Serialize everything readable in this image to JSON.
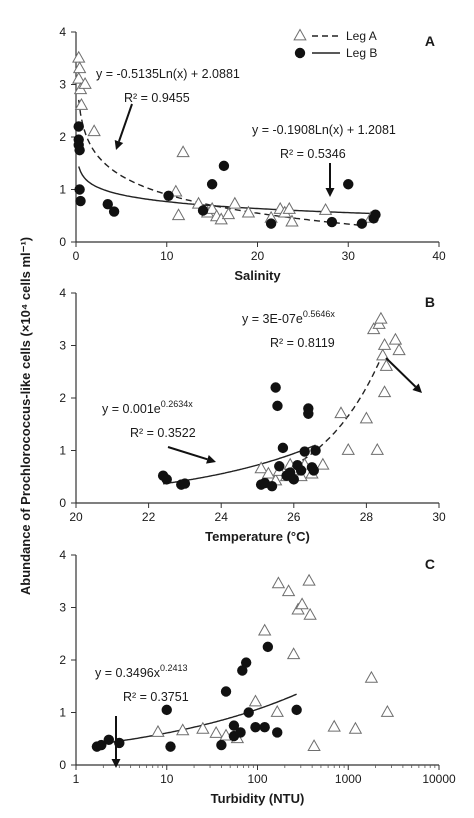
{
  "figure": {
    "ylabel": "Abundance of Prochlorococcus-like cells (×10⁴ cells ml⁻¹)"
  },
  "chart_data": [
    {
      "type": "scatter",
      "panel_label": "A",
      "xlabel": "Salinity",
      "xlim": [
        0,
        40
      ],
      "ylim": [
        0,
        4
      ],
      "xticks": [
        "0",
        "10",
        "20",
        "30",
        "40"
      ],
      "yticks": [
        "0",
        "1",
        "2",
        "3",
        "4"
      ],
      "legend": {
        "placement": "top-right",
        "entries": [
          "Leg A",
          "Leg B"
        ]
      },
      "series": [
        {
          "name": "Leg A",
          "marker": "open-triangle",
          "points": [
            [
              0.3,
              3.5
            ],
            [
              0.4,
              3.3
            ],
            [
              0.3,
              3.1
            ],
            [
              0.5,
              2.9
            ],
            [
              0.6,
              2.6
            ],
            [
              1.0,
              3.0
            ],
            [
              2.0,
              2.1
            ],
            [
              11.0,
              0.95
            ],
            [
              11.3,
              0.5
            ],
            [
              11.8,
              1.7
            ],
            [
              13.5,
              0.72
            ],
            [
              14.5,
              0.55
            ],
            [
              15.0,
              0.62
            ],
            [
              15.5,
              0.48
            ],
            [
              16.0,
              0.42
            ],
            [
              16.8,
              0.52
            ],
            [
              17.5,
              0.72
            ],
            [
              19.0,
              0.55
            ],
            [
              21.5,
              0.45
            ],
            [
              22.5,
              0.62
            ],
            [
              23.0,
              0.55
            ],
            [
              23.5,
              0.62
            ],
            [
              23.8,
              0.38
            ],
            [
              27.5,
              0.6
            ],
            [
              32.5,
              0.45
            ]
          ]
        },
        {
          "name": "Leg B",
          "marker": "filled-circle",
          "points": [
            [
              0.3,
              2.2
            ],
            [
              0.3,
              1.95
            ],
            [
              0.3,
              1.85
            ],
            [
              0.4,
              1.75
            ],
            [
              0.4,
              1.0
            ],
            [
              0.5,
              0.78
            ],
            [
              3.5,
              0.72
            ],
            [
              4.2,
              0.58
            ],
            [
              10.2,
              0.88
            ],
            [
              14.0,
              0.6
            ],
            [
              15.0,
              1.1
            ],
            [
              16.3,
              1.45
            ],
            [
              21.5,
              0.35
            ],
            [
              28.2,
              0.38
            ],
            [
              30.0,
              1.1
            ],
            [
              31.5,
              0.35
            ],
            [
              32.8,
              0.45
            ],
            [
              33.0,
              0.52
            ]
          ]
        }
      ],
      "fits": [
        {
          "series": "Leg A",
          "style": "dashed",
          "equation": "y = -0.5135Ln(x) + 2.0881",
          "r2": "R² = 0.9455",
          "a": -0.5135,
          "b": 2.0881,
          "x_range": [
            0.3,
            32
          ]
        },
        {
          "series": "Leg B",
          "style": "solid",
          "equation": "y = -0.1908Ln(x) + 1.2081",
          "r2": "R² = 0.5346",
          "a": -0.1908,
          "b": 1.2081,
          "x_range": [
            0.3,
            33
          ]
        }
      ]
    },
    {
      "type": "scatter",
      "panel_label": "B",
      "xlabel": "Temperature (°C)",
      "xlim": [
        20,
        30
      ],
      "ylim": [
        0,
        4
      ],
      "xticks": [
        "20",
        "22",
        "24",
        "26",
        "28",
        "30"
      ],
      "yticks": [
        "0",
        "1",
        "2",
        "3",
        "4"
      ],
      "series": [
        {
          "name": "Leg A",
          "marker": "open-triangle",
          "points": [
            [
              25.1,
              0.65
            ],
            [
              25.3,
              0.55
            ],
            [
              25.5,
              0.42
            ],
            [
              25.6,
              0.6
            ],
            [
              25.8,
              0.5
            ],
            [
              25.9,
              0.72
            ],
            [
              26.0,
              0.62
            ],
            [
              26.2,
              0.5
            ],
            [
              26.3,
              0.72
            ],
            [
              26.5,
              0.55
            ],
            [
              26.8,
              0.72
            ],
            [
              27.3,
              1.7
            ],
            [
              27.5,
              1.0
            ],
            [
              28.0,
              1.6
            ],
            [
              28.2,
              3.3
            ],
            [
              28.3,
              1.0
            ],
            [
              28.35,
              3.4
            ],
            [
              28.4,
              3.5
            ],
            [
              28.45,
              2.8
            ],
            [
              28.5,
              3.0
            ],
            [
              28.55,
              2.6
            ],
            [
              28.5,
              2.1
            ],
            [
              28.8,
              3.1
            ],
            [
              28.9,
              2.9
            ]
          ]
        },
        {
          "name": "Leg B",
          "marker": "filled-circle",
          "points": [
            [
              22.4,
              0.52
            ],
            [
              22.5,
              0.45
            ],
            [
              22.9,
              0.35
            ],
            [
              23.0,
              0.37
            ],
            [
              25.1,
              0.35
            ],
            [
              25.2,
              0.38
            ],
            [
              25.4,
              0.32
            ],
            [
              25.5,
              2.2
            ],
            [
              25.55,
              1.85
            ],
            [
              25.6,
              0.7
            ],
            [
              25.7,
              1.05
            ],
            [
              25.8,
              0.52
            ],
            [
              25.9,
              0.58
            ],
            [
              26.0,
              0.45
            ],
            [
              26.1,
              0.72
            ],
            [
              26.2,
              0.62
            ],
            [
              26.3,
              0.98
            ],
            [
              26.4,
              1.7
            ],
            [
              26.4,
              1.8
            ],
            [
              26.5,
              0.68
            ],
            [
              26.55,
              0.62
            ],
            [
              26.6,
              1.0
            ]
          ]
        }
      ],
      "fits": [
        {
          "series": "Leg B",
          "style": "solid",
          "equation": "y = 0.001e",
          "exponent": "0.2634x",
          "r2": "R² = 0.3522",
          "a": 0.001,
          "k": 0.2634,
          "x_range": [
            22.4,
            26.6
          ]
        },
        {
          "series": "Leg A",
          "style": "dashed",
          "equation": "y = 3E-07e",
          "exponent": "0.5646x",
          "r2": "R² = 0.8119",
          "a": 3e-07,
          "k": 0.5646,
          "x_range": [
            25.0,
            28.6
          ]
        }
      ]
    },
    {
      "type": "scatter",
      "panel_label": "C",
      "xlabel": "Turbidity (NTU)",
      "xscale": "log",
      "xlim": [
        1,
        10000
      ],
      "ylim": [
        0,
        4
      ],
      "xticks": [
        "1",
        "10",
        "100",
        "1000",
        "10000"
      ],
      "yticks": [
        "0",
        "1",
        "2",
        "3",
        "4"
      ],
      "series": [
        {
          "name": "Leg A",
          "marker": "open-triangle",
          "points": [
            [
              8,
              0.62
            ],
            [
              15,
              0.65
            ],
            [
              25,
              0.68
            ],
            [
              35,
              0.6
            ],
            [
              45,
              0.55
            ],
            [
              60,
              0.5
            ],
            [
              95,
              1.2
            ],
            [
              120,
              2.55
            ],
            [
              165,
              1.0
            ],
            [
              170,
              3.45
            ],
            [
              220,
              3.3
            ],
            [
              250,
              2.1
            ],
            [
              280,
              2.95
            ],
            [
              310,
              3.05
            ],
            [
              370,
              3.5
            ],
            [
              380,
              2.85
            ],
            [
              420,
              0.35
            ],
            [
              700,
              0.72
            ],
            [
              1200,
              0.68
            ],
            [
              1800,
              1.65
            ],
            [
              2700,
              1.0
            ]
          ]
        },
        {
          "name": "Leg B",
          "marker": "filled-circle",
          "points": [
            [
              1.7,
              0.35
            ],
            [
              1.9,
              0.38
            ],
            [
              2.3,
              0.48
            ],
            [
              3.0,
              0.42
            ],
            [
              10,
              1.05
            ],
            [
              11,
              0.35
            ],
            [
              40,
              0.38
            ],
            [
              45,
              1.4
            ],
            [
              55,
              0.55
            ],
            [
              55,
              0.75
            ],
            [
              65,
              0.62
            ],
            [
              68,
              1.8
            ],
            [
              75,
              1.95
            ],
            [
              80,
              1.0
            ],
            [
              95,
              0.72
            ],
            [
              120,
              0.72
            ],
            [
              130,
              2.25
            ],
            [
              165,
              0.62
            ],
            [
              270,
              1.05
            ]
          ]
        }
      ],
      "fits": [
        {
          "series": "Leg B",
          "style": "solid",
          "equation": "y = 0.3496x",
          "exponent": "0.2413",
          "r2": "R² = 0.3751",
          "a": 0.3496,
          "k": 0.2413,
          "x_range": [
            1.7,
            270
          ]
        }
      ]
    }
  ]
}
